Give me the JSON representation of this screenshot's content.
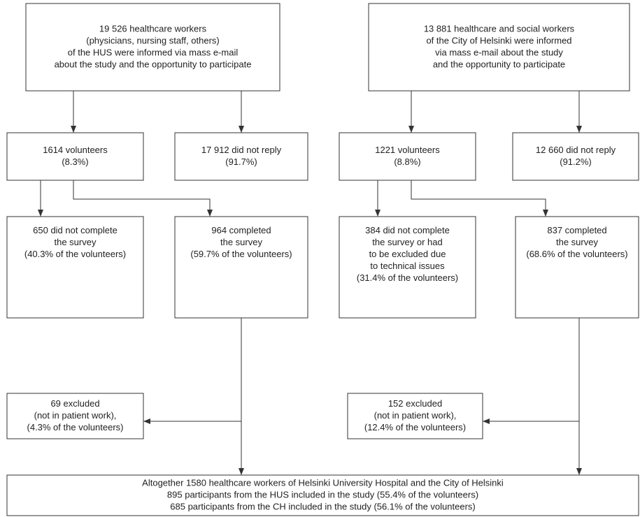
{
  "nodes": [
    {
      "lines": [
        "19 526 healthcare workers",
        "(physicians, nursing staff, others)",
        "of the HUS were informed via mass e-mail",
        "about the study and the opportunity to participate"
      ]
    },
    {
      "lines": [
        "13 881 healthcare and social workers",
        "of the City of Helsinki were informed",
        "via mass e-mail about the study",
        "and the opportunity to participate"
      ]
    },
    {
      "lines": [
        "1614 volunteers",
        "(8.3%)"
      ]
    },
    {
      "lines": [
        "17 912 did not reply",
        "(91.7%)"
      ]
    },
    {
      "lines": [
        "1221 volunteers",
        "(8.8%)"
      ]
    },
    {
      "lines": [
        "12 660 did not reply",
        "(91.2%)"
      ]
    },
    {
      "lines": [
        "650 did not complete",
        "the survey",
        "(40.3% of the volunteers)"
      ]
    },
    {
      "lines": [
        "964 completed",
        "the survey",
        "(59.7% of the volunteers)"
      ]
    },
    {
      "lines": [
        "384 did not complete",
        "the survey or had",
        "to be excluded due",
        "to technical issues",
        "(31.4% of the volunteers)"
      ]
    },
    {
      "lines": [
        "837 completed",
        "the survey",
        "(68.6% of the volunteers)"
      ]
    },
    {
      "lines": [
        "69 excluded",
        "(not in patient work),",
        "(4.3% of the volunteers)"
      ]
    },
    {
      "lines": [
        "152 excluded",
        "(not in patient work),",
        "(12.4% of the volunteers)"
      ]
    },
    {
      "lines": [
        "Altogether 1580 healthcare workers of Helsinki University Hospital and the City of Helsinki",
        "895 participants from the HUS included in the study (55.4% of the volunteers)",
        "685 participants from the CH included in the study (56.1% of the volunteers)"
      ]
    }
  ]
}
